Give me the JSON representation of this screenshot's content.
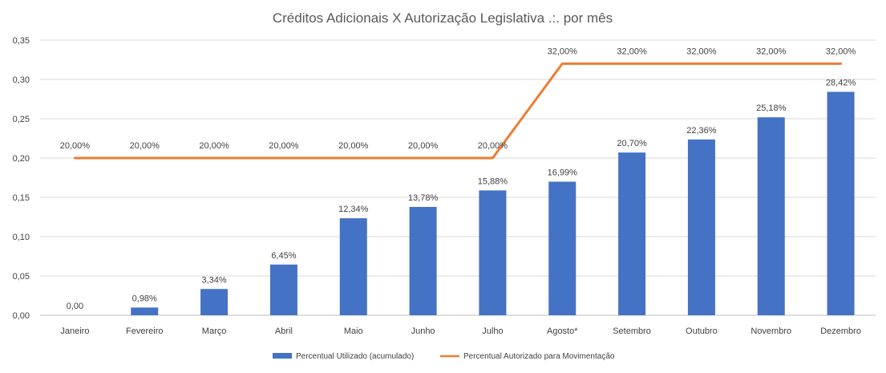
{
  "chart_data": {
    "type": "bar",
    "title": "Créditos Adicionais X Autorização Legislativa .:. por mês",
    "xlabel": "",
    "ylabel": "",
    "categories": [
      "Janeiro",
      "Fevereiro",
      "Março",
      "Abril",
      "Maio",
      "Junho",
      "Julho",
      "Agosto*",
      "Setembro",
      "Outubro",
      "Novembro",
      "Dezembro"
    ],
    "ylim": [
      0,
      0.35
    ],
    "yticks": [
      "0,00",
      "0,05",
      "0,10",
      "0,15",
      "0,20",
      "0,25",
      "0,30",
      "0,35"
    ],
    "ytick_values": [
      0,
      0.05,
      0.1,
      0.15,
      0.2,
      0.25,
      0.3,
      0.35
    ],
    "grid": true,
    "legend_position": "bottom",
    "series": [
      {
        "name": "Percentual Utilizado (acumulado)",
        "type": "bar",
        "color": "#4472C4",
        "values": [
          0.0,
          0.0098,
          0.0334,
          0.0645,
          0.1234,
          0.1378,
          0.1588,
          0.1699,
          0.207,
          0.2236,
          0.2518,
          0.2842
        ],
        "labels": [
          "0,00",
          "0,98%",
          "3,34%",
          "6,45%",
          "12,34%",
          "13,78%",
          "15,88%",
          "16,99%",
          "20,70%",
          "22,36%",
          "25,18%",
          "28,42%"
        ]
      },
      {
        "name": "Percentual Autorizado para Movimentação",
        "type": "line",
        "color": "#ED7D31",
        "values": [
          0.2,
          0.2,
          0.2,
          0.2,
          0.2,
          0.2,
          0.2,
          0.32,
          0.32,
          0.32,
          0.32,
          0.32
        ],
        "labels": [
          "20,00%",
          "20,00%",
          "20,00%",
          "20,00%",
          "20,00%",
          "20,00%",
          "20,00%",
          "32,00%",
          "32,00%",
          "32,00%",
          "32,00%",
          "32,00%"
        ]
      }
    ]
  }
}
